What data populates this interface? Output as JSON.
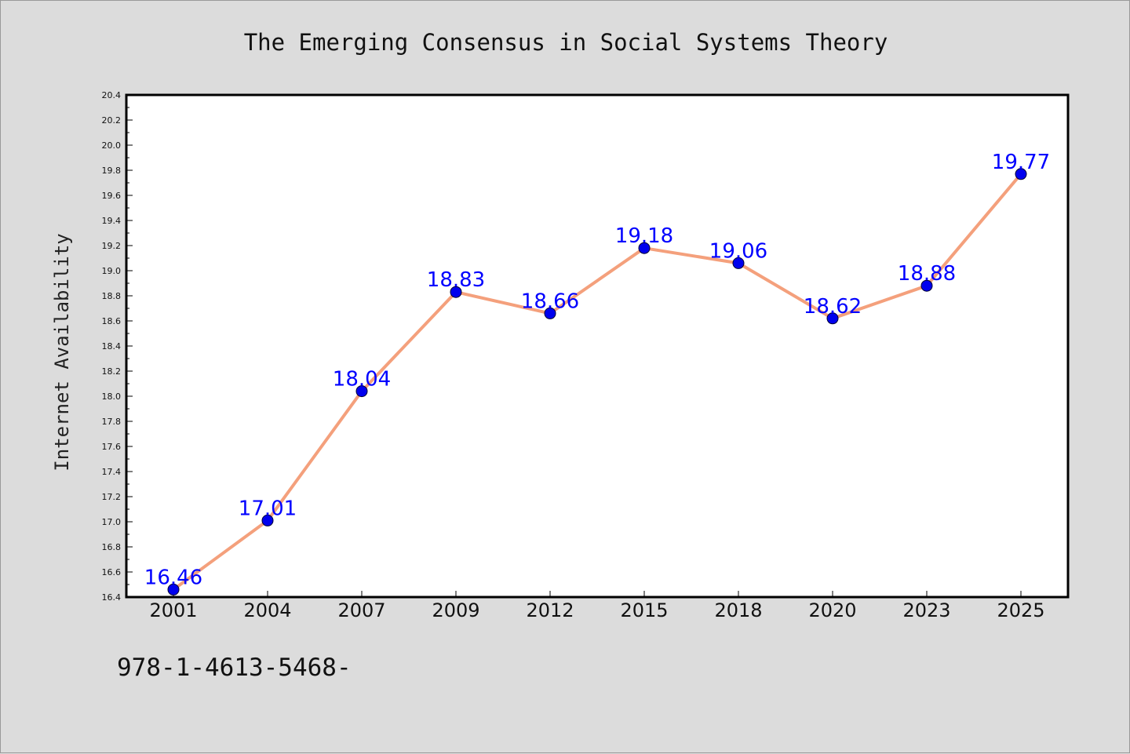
{
  "chart_data": {
    "type": "line",
    "title": "The Emerging Consensus in Social Systems Theory",
    "xlabel": "",
    "ylabel": "Internet Availability",
    "categories": [
      "2001",
      "2004",
      "2007",
      "2009",
      "2012",
      "2015",
      "2018",
      "2020",
      "2023",
      "2025"
    ],
    "values": [
      16.46,
      17.01,
      18.04,
      18.83,
      18.66,
      19.18,
      19.06,
      18.62,
      18.88,
      19.77
    ],
    "data_labels": [
      "16.46",
      "17.01",
      "18.04",
      "18.83",
      "18.66",
      "19.18",
      "19.06",
      "18.62",
      "18.88",
      "19.77"
    ],
    "ylim": [
      16.4,
      20.4
    ],
    "yticks": [
      "16.4",
      "16.6",
      "16.8",
      "17.0",
      "17.2",
      "17.4",
      "17.6",
      "17.8",
      "18.0",
      "18.2",
      "18.4",
      "18.6",
      "18.8",
      "19.0",
      "19.2",
      "19.4",
      "19.6",
      "19.8",
      "20.0",
      "20.2",
      "20.4"
    ],
    "grid": false,
    "line_color": "#f4a07c",
    "marker_color": "#0000ee",
    "label_color": "#0000ff",
    "plot_background": "#ffffff",
    "page_background": "#dcdcdc"
  },
  "footer": {
    "text": "978-1-4613-5468-"
  }
}
